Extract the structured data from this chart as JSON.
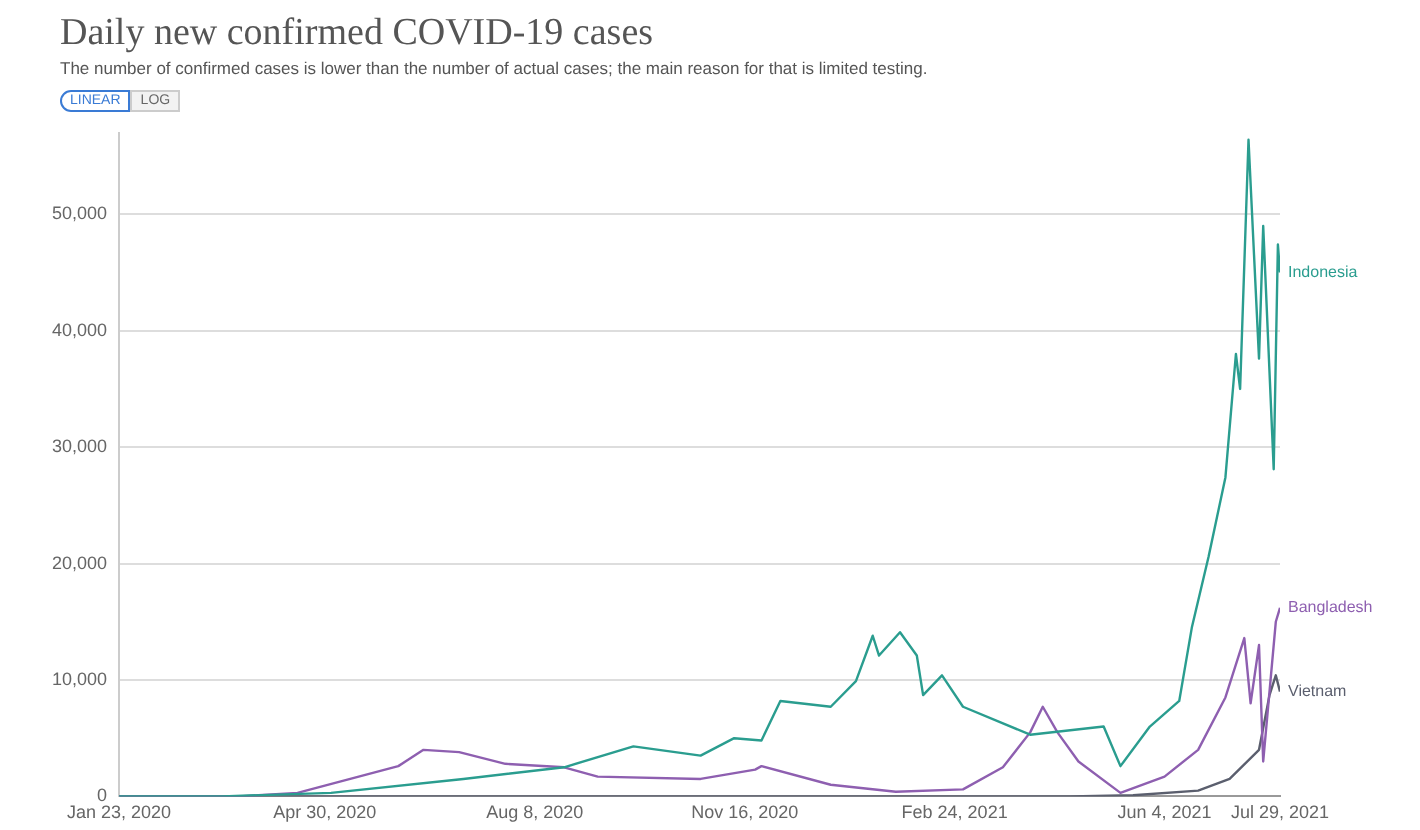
{
  "chart_data": {
    "type": "line",
    "title": "Daily new confirmed COVID-19 cases",
    "subtitle": "The number of confirmed cases is lower than the number of actual cases; the main reason for that is limited testing.",
    "annotations": [
      "LINEAR",
      "LOG"
    ],
    "xlim": [
      "2020-01-23",
      "2021-07-29"
    ],
    "xticks": [
      {
        "value": "2020-01-23",
        "label": "Jan 23, 2020"
      },
      {
        "value": "2020-04-30",
        "label": "Apr 30, 2020"
      },
      {
        "value": "2020-08-08",
        "label": "Aug 8, 2020"
      },
      {
        "value": "2020-11-16",
        "label": "Nov 16, 2020"
      },
      {
        "value": "2021-02-24",
        "label": "Feb 24, 2021"
      },
      {
        "value": "2021-06-04",
        "label": "Jun 4, 2021"
      },
      {
        "value": "2021-07-29",
        "label": "Jul 29, 2021"
      }
    ],
    "ylim": [
      0,
      57000
    ],
    "yticks": [
      0,
      {
        "value": 10000,
        "label": "10,000"
      },
      {
        "value": 20000,
        "label": "20,000"
      },
      {
        "value": 30000,
        "label": "30,000"
      },
      {
        "value": 40000,
        "label": "40,000"
      },
      {
        "value": 50000,
        "label": "50,000"
      }
    ],
    "grid": "y",
    "marker": "none",
    "line_style": "solid",
    "series": [
      {
        "name": "Indonesia",
        "color": "#2a9d8f",
        "x": [
          "2020-01-23",
          "2020-03-12",
          "2020-05-03",
          "2020-07-05",
          "2020-08-22",
          "2020-09-24",
          "2020-10-26",
          "2020-11-11",
          "2020-11-24",
          "2020-12-03",
          "2020-12-27",
          "2021-01-08",
          "2021-01-16",
          "2021-01-19",
          "2021-01-29",
          "2021-02-06",
          "2021-02-09",
          "2021-02-18",
          "2021-02-28",
          "2021-04-01",
          "2021-05-06",
          "2021-05-14",
          "2021-05-28",
          "2021-06-11",
          "2021-06-17",
          "2021-06-25",
          "2021-07-03",
          "2021-07-08",
          "2021-07-10",
          "2021-07-14",
          "2021-07-19",
          "2021-07-21",
          "2021-07-26",
          "2021-07-28",
          "2021-07-29"
        ],
        "values": [
          0,
          0,
          300,
          1500,
          2500,
          4300,
          3500,
          5000,
          4800,
          8200,
          7700,
          9900,
          13800,
          12100,
          14100,
          12100,
          8700,
          10400,
          7700,
          5300,
          6000,
          2600,
          6000,
          8200,
          14500,
          20600,
          27400,
          38000,
          35000,
          56400,
          37600,
          49000,
          28100,
          47400,
          45000
        ]
      },
      {
        "name": "Bangladesh",
        "color": "#8e5fb0",
        "x": [
          "2020-01-23",
          "2020-03-20",
          "2020-04-17",
          "2020-06-04",
          "2020-06-16",
          "2020-07-03",
          "2020-07-25",
          "2020-08-22",
          "2020-09-07",
          "2020-10-26",
          "2020-11-21",
          "2020-11-24",
          "2020-12-27",
          "2021-01-27",
          "2021-02-28",
          "2021-03-19",
          "2021-04-01",
          "2021-04-07",
          "2021-04-14",
          "2021-04-24",
          "2021-05-14",
          "2021-06-04",
          "2021-06-20",
          "2021-07-03",
          "2021-07-12",
          "2021-07-15",
          "2021-07-19",
          "2021-07-21",
          "2021-07-27",
          "2021-07-29"
        ],
        "values": [
          0,
          0,
          300,
          2600,
          4000,
          3800,
          2800,
          2500,
          1700,
          1500,
          2300,
          2600,
          1000,
          400,
          600,
          2500,
          5500,
          7700,
          5500,
          3000,
          300,
          1700,
          4000,
          8500,
          13600,
          8000,
          13000,
          3000,
          15000,
          16200
        ]
      },
      {
        "name": "Vietnam",
        "color": "#5b5f6e",
        "x": [
          "2020-01-23",
          "2021-04-20",
          "2021-05-20",
          "2021-06-20",
          "2021-07-05",
          "2021-07-19",
          "2021-07-24",
          "2021-07-27",
          "2021-07-29"
        ],
        "values": [
          0,
          0,
          100,
          500,
          1500,
          4000,
          8700,
          10400,
          9000
        ]
      }
    ]
  }
}
